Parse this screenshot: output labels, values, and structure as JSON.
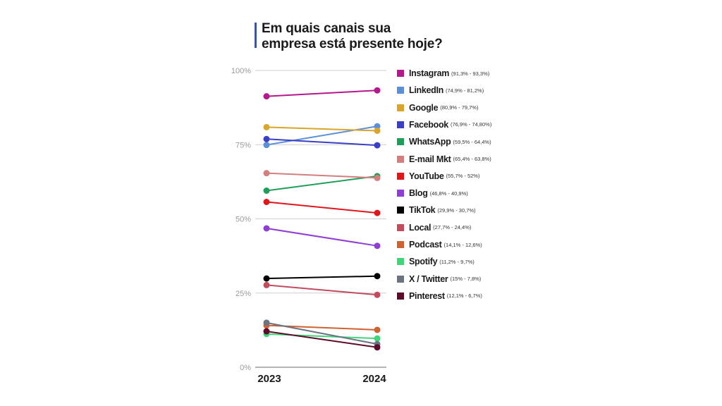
{
  "chart_data": {
    "type": "line",
    "title": "Em quais canais sua empresa está presente hoje?",
    "title_lines": [
      "Em quais canais sua",
      "empresa está presente hoje?"
    ],
    "x": [
      "2023",
      "2024"
    ],
    "y_ticks": [
      "100%",
      "75%",
      "50%",
      "25%",
      "0%"
    ],
    "ylim": [
      0,
      100
    ],
    "grid": true,
    "legend_placement": "right",
    "series": [
      {
        "name": "Instagram",
        "range_label": "(91,3% - 93,3%)",
        "values": [
          91.3,
          93.3
        ],
        "color": "#b5178c"
      },
      {
        "name": "LinkedIn",
        "range_label": "(74,9% - 81,2%)",
        "values": [
          74.9,
          81.2
        ],
        "color": "#5b8fd8"
      },
      {
        "name": "Google",
        "range_label": "(80,9% - 79,7%)",
        "values": [
          80.9,
          79.7
        ],
        "color": "#d9a52a"
      },
      {
        "name": "Facebook",
        "range_label": "(76,9% - 74,80%)",
        "values": [
          76.9,
          74.8
        ],
        "color": "#3b3fc6"
      },
      {
        "name": "WhatsApp",
        "range_label": "(59,5% - 64,4%)",
        "values": [
          59.5,
          64.4
        ],
        "color": "#1f9e5a"
      },
      {
        "name": "E-mail Mkt",
        "range_label": "(65,4% - 63,8%)",
        "values": [
          65.4,
          63.8
        ],
        "color": "#d47f7f"
      },
      {
        "name": "YouTube",
        "range_label": "(55,7% - 52%)",
        "values": [
          55.7,
          52.0
        ],
        "color": "#e0161b"
      },
      {
        "name": "Blog",
        "range_label": "(46,8% - 40,9%)",
        "values": [
          46.8,
          40.9
        ],
        "color": "#8f3fd6"
      },
      {
        "name": "TikTok",
        "range_label": "(29,9% - 30,7%)",
        "values": [
          29.9,
          30.7
        ],
        "color": "#000000"
      },
      {
        "name": "Local",
        "range_label": "(27,7% - 24,4%)",
        "values": [
          27.7,
          24.4
        ],
        "color": "#c24b5e"
      },
      {
        "name": "Podcast",
        "range_label": "(14,1% - 12,6%)",
        "values": [
          14.1,
          12.6
        ],
        "color": "#cf6231"
      },
      {
        "name": "Spotify",
        "range_label": "(11,2% - 9,7%)",
        "values": [
          11.2,
          9.7
        ],
        "color": "#3fd67a"
      },
      {
        "name": "X / Twitter",
        "range_label": "(15% - 7,8%)",
        "values": [
          15.0,
          7.8
        ],
        "color": "#6b7280"
      },
      {
        "name": "Pinterest",
        "range_label": "(12,1% - 6,7%)",
        "values": [
          12.1,
          6.7
        ],
        "color": "#5e0a2a"
      }
    ]
  }
}
